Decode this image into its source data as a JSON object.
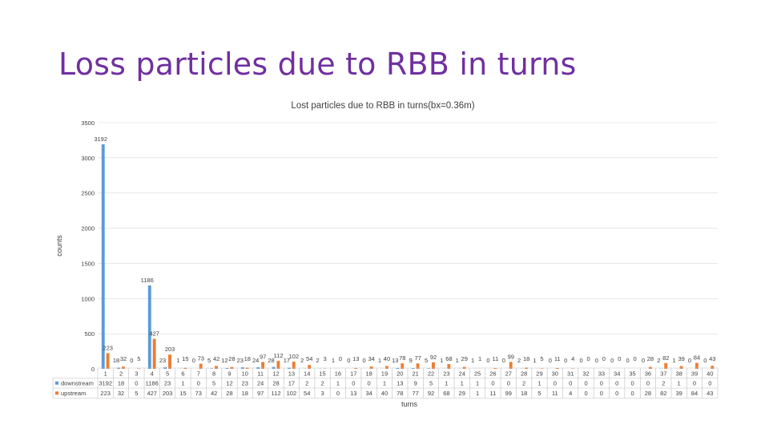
{
  "slide": {
    "title": "Loss particles due to RBB in turns"
  },
  "colors": {
    "downstream": "#5b9bd5",
    "upstream": "#ed7d31",
    "title": "#7030a0",
    "grid": "#d9d9d9",
    "text": "#404040"
  },
  "chart_data": {
    "type": "bar",
    "title": "Lost particles due to RBB in turns(bx=0.36m)",
    "xlabel": "turns",
    "ylabel": "counts",
    "ylim": [
      0,
      3500
    ],
    "yticks": [
      0,
      500,
      1000,
      1500,
      2000,
      2500,
      3000,
      3500
    ],
    "grid": true,
    "legend": "data-table",
    "categories": [
      "1",
      "2",
      "3",
      "4",
      "5",
      "6",
      "7",
      "8",
      "9",
      "10",
      "11",
      "12",
      "13",
      "14",
      "15",
      "16",
      "17",
      "18",
      "19",
      "20",
      "21",
      "22",
      "23",
      "24",
      "25",
      "26",
      "27",
      "28",
      "29",
      "30",
      "31",
      "32",
      "33",
      "34",
      "35",
      "36",
      "37",
      "38",
      "39",
      "40"
    ],
    "series": [
      {
        "name": "downstream",
        "color": "#5b9bd5",
        "values": [
          3192,
          18,
          0,
          1186,
          23,
          1,
          0,
          5,
          12,
          23,
          24,
          28,
          17,
          2,
          2,
          1,
          0,
          0,
          1,
          13,
          9,
          5,
          1,
          1,
          1,
          0,
          0,
          2,
          1,
          0,
          0,
          0,
          0,
          0,
          0,
          0,
          2,
          1,
          0,
          0
        ]
      },
      {
        "name": "upstream",
        "color": "#ed7d31",
        "values": [
          223,
          32,
          5,
          427,
          203,
          15,
          73,
          42,
          28,
          18,
          97,
          112,
          102,
          54,
          3,
          0,
          13,
          34,
          40,
          78,
          77,
          92,
          68,
          29,
          1,
          11,
          99,
          18,
          5,
          11,
          4,
          0,
          0,
          0,
          0,
          28,
          82,
          39,
          84,
          43
        ]
      }
    ]
  }
}
